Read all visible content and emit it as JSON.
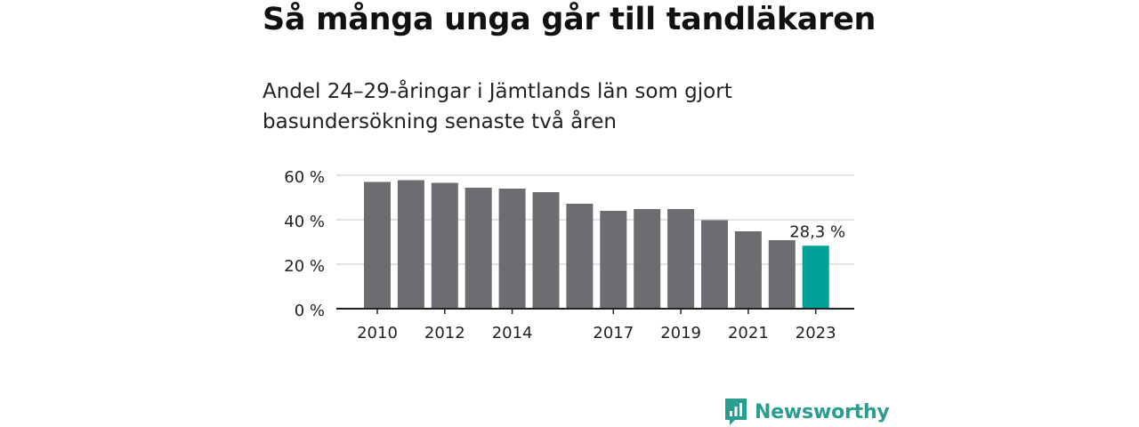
{
  "title": "Så många unga går till tandläkaren",
  "subtitle": "Andel 24–29-åringar i Jämtlands län som gjort basundersökning senaste två åren",
  "brand": {
    "name": "Newsworthy",
    "icon": "newsworthy-logo-icon",
    "color": "#2a9d91"
  },
  "chart_data": {
    "type": "bar",
    "categories": [
      "2010",
      "2011",
      "2012",
      "2013",
      "2014",
      "2015",
      "2016",
      "2017",
      "2018",
      "2019",
      "2020",
      "2021",
      "2022",
      "2023"
    ],
    "values": [
      57.0,
      57.8,
      56.6,
      54.4,
      54.0,
      52.4,
      47.2,
      44.0,
      44.8,
      44.8,
      39.8,
      34.8,
      30.8,
      28.3
    ],
    "tick_labels_x": [
      "2010",
      "2012",
      "2014",
      "2017",
      "2019",
      "2021",
      "2023"
    ],
    "tick_labels_y": [
      "0 %",
      "20 %",
      "40 %",
      "60 %"
    ],
    "y_ticks": [
      0,
      20,
      40,
      60
    ],
    "ylim": [
      0,
      60
    ],
    "highlight_category": "2023",
    "highlight_label": "28,3 %",
    "grid": true,
    "colors": {
      "bar": "#6d6c71",
      "highlight": "#00a197",
      "grid": "#d9d9d9",
      "axis": "#222222"
    }
  }
}
